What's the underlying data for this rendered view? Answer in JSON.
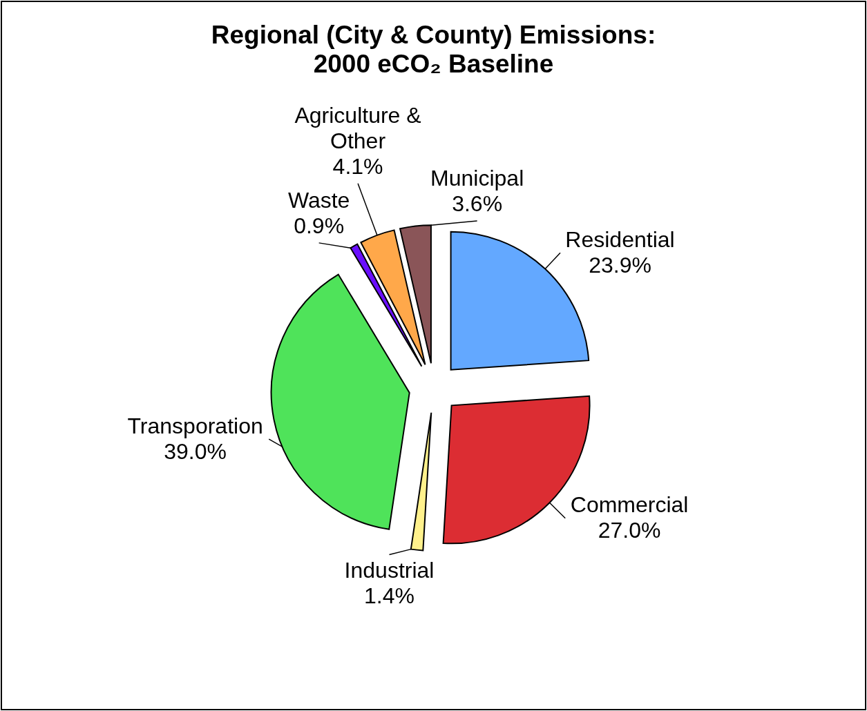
{
  "chart_data": {
    "type": "pie",
    "title": "Regional (City & County) Emissions:\n2000 eCO₂ Baseline",
    "categories": [
      "Residential",
      "Commercial",
      "Industrial",
      "Transporation",
      "Waste",
      "Agriculture & Other",
      "Municipal"
    ],
    "values": [
      23.9,
      27.0,
      1.4,
      39.0,
      0.9,
      4.1,
      3.6
    ],
    "colors": [
      "#63a8ff",
      "#dc2d33",
      "#fff18c",
      "#4fe35a",
      "#6a0fff",
      "#ffa84a",
      "#8a5558"
    ],
    "value_labels": [
      "23.9%",
      "27.0%",
      "1.4%",
      "39.0%",
      "0.9%",
      "4.1%",
      "3.6%"
    ]
  }
}
